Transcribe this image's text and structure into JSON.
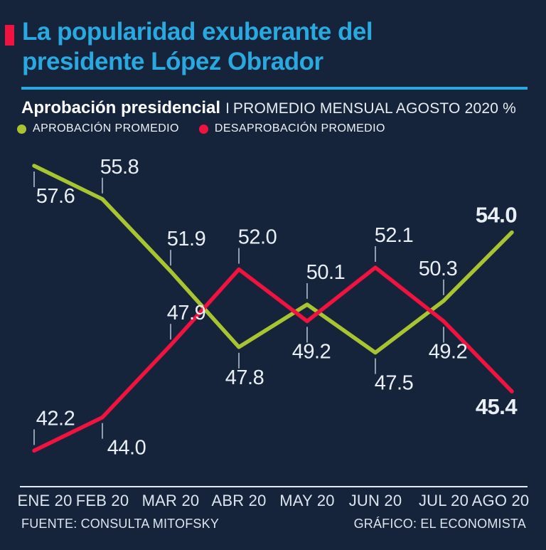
{
  "page": {
    "background": "#15243a"
  },
  "header": {
    "bullet_color": "#f0123f",
    "title_lines": [
      "La popularidad exuberante del",
      "presidente López Obrador"
    ],
    "title_color": "#2aa9e0",
    "rule_color": "#2aa9e0",
    "subtitle_bold": "Aprobación presidencial",
    "subtitle_sep": "I",
    "subtitle_rest": "PROMEDIO MENSUAL AGOSTO 2020 %"
  },
  "legend": {
    "items": [
      {
        "label": "APROBACIÓN PROMEDIO",
        "color": "#a9c431",
        "icon": "legend-dot-green"
      },
      {
        "label": "DESAPROBACIÓN PROMEDIO",
        "color": "#f0123f",
        "icon": "legend-dot-red"
      }
    ]
  },
  "chart_data": {
    "type": "line",
    "title": "Aprobación presidencial | Promedio mensual Agosto 2020 %",
    "categories": [
      "ENE 20",
      "FEB 20",
      "MAR 20",
      "ABR 20",
      "MAY 20",
      "JUN 20",
      "JUL 20",
      "AGO 20"
    ],
    "series": [
      {
        "name": "APROBACIÓN PROMEDIO",
        "color": "#a9c431",
        "values": [
          57.6,
          55.8,
          51.9,
          47.8,
          50.1,
          47.5,
          50.3,
          54.0
        ],
        "labels": [
          {
            "side": "below",
            "dx": 30
          },
          {
            "side": "above",
            "dx": 24
          },
          {
            "side": "above",
            "dx": 22
          },
          {
            "side": "below",
            "dx": 8
          },
          {
            "side": "above",
            "dx": 26
          },
          {
            "side": "below",
            "dx": 26
          },
          {
            "side": "above",
            "dx": -8
          },
          {
            "side": "above",
            "dx": -22,
            "bold": true,
            "tick": false
          }
        ]
      },
      {
        "name": "DESAPROBACIÓN PROMEDIO",
        "color": "#f0123f",
        "values": [
          42.2,
          44.0,
          47.9,
          52.0,
          49.2,
          52.1,
          49.2,
          45.4
        ],
        "labels": [
          {
            "side": "above",
            "dx": 30
          },
          {
            "side": "below",
            "dx": 34
          },
          {
            "side": "above",
            "dx": 22
          },
          {
            "side": "above",
            "dx": 26
          },
          {
            "side": "below",
            "dx": 6
          },
          {
            "side": "above",
            "dx": 26
          },
          {
            "side": "below",
            "dx": 6
          },
          {
            "side": "below",
            "dx": -22,
            "bold": true,
            "tick": false
          }
        ]
      }
    ],
    "ylim": [
      40,
      60
    ],
    "grid": false,
    "legend_position": "top",
    "axis_color": "#e3eaf1",
    "label_color": "#eaeff5",
    "tick_color": "#c2cedb",
    "month_label_color": "#dde5ee"
  },
  "footer": {
    "source": "FUENTE: CONSULTA MITOFSKY",
    "credit": "GRÁFICO: EL ECONOMISTA"
  }
}
